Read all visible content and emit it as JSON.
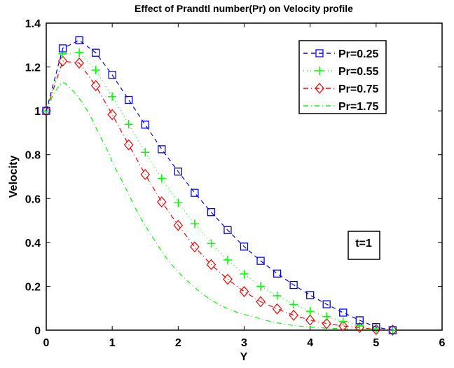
{
  "chart_data": {
    "type": "line",
    "title": "Effect of Prandtl number(Pr) on Velocity profile",
    "xlabel": "Y",
    "ylabel": "Velocity",
    "xlim": [
      0,
      6
    ],
    "ylim": [
      0,
      1.4
    ],
    "xticks": [
      0,
      1,
      2,
      3,
      4,
      5,
      6
    ],
    "xtick_labels": [
      "0",
      "1",
      "2",
      "3",
      "4",
      "5",
      "6"
    ],
    "yticks": [
      0,
      0.2,
      0.4,
      0.6,
      0.8,
      1.0,
      1.2,
      1.4
    ],
    "ytick_labels": [
      "0",
      "0.2",
      "0.4",
      "0.6",
      "0.8",
      "1",
      "1.2",
      "1.4"
    ],
    "grid": false,
    "legend_position": "top-right",
    "annotation": "t=1",
    "annotation_position": "right-middle",
    "series": [
      {
        "name": "Pr=0.25",
        "color": "#0000ff",
        "line_style": "dashed",
        "marker": "square",
        "x": [
          0,
          0.25,
          0.5,
          0.75,
          1.0,
          1.25,
          1.5,
          1.75,
          2.0,
          2.25,
          2.5,
          2.75,
          3.0,
          3.25,
          3.5,
          3.75,
          4.0,
          4.25,
          4.5,
          4.75,
          5.0,
          5.25
        ],
        "y": [
          1.0,
          1.285,
          1.322,
          1.265,
          1.164,
          1.05,
          0.937,
          0.825,
          0.723,
          0.626,
          0.538,
          0.456,
          0.381,
          0.316,
          0.258,
          0.206,
          0.16,
          0.118,
          0.08,
          0.045,
          0.014,
          0.0
        ]
      },
      {
        "name": "Pr=0.55",
        "color": "#00ff00",
        "line_style": "dotted",
        "marker": "plus",
        "x": [
          0,
          0.25,
          0.5,
          0.75,
          1.0,
          1.25,
          1.5,
          1.75,
          2.0,
          2.25,
          2.5,
          2.75,
          3.0,
          3.25,
          3.5,
          3.75,
          4.0,
          4.25,
          4.5,
          4.75,
          5.0,
          5.25
        ],
        "y": [
          1.0,
          1.26,
          1.266,
          1.186,
          1.065,
          0.939,
          0.811,
          0.692,
          0.581,
          0.485,
          0.395,
          0.32,
          0.256,
          0.2,
          0.157,
          0.117,
          0.086,
          0.062,
          0.04,
          0.02,
          0.006,
          0.0
        ]
      },
      {
        "name": "Pr=0.75",
        "color": "#ff0000",
        "line_style": "dashdot",
        "marker": "diamond",
        "x": [
          0,
          0.25,
          0.5,
          0.75,
          1.0,
          1.25,
          1.5,
          1.75,
          2.0,
          2.25,
          2.5,
          2.75,
          3.0,
          3.25,
          3.5,
          3.75,
          4.0,
          4.25,
          4.5,
          4.75,
          5.0,
          5.25
        ],
        "y": [
          1.0,
          1.227,
          1.218,
          1.115,
          0.983,
          0.845,
          0.71,
          0.585,
          0.478,
          0.38,
          0.299,
          0.232,
          0.176,
          0.13,
          0.097,
          0.068,
          0.046,
          0.03,
          0.019,
          0.012,
          0.003,
          0.0
        ]
      },
      {
        "name": "Pr=1.75",
        "color": "#00ff00",
        "line_style": "dashdot",
        "marker": "none",
        "x": [
          0,
          0.1,
          0.2,
          0.27,
          0.41,
          0.54,
          0.68,
          0.79,
          0.93,
          1.02,
          1.16,
          1.37,
          1.5,
          1.67,
          1.81,
          1.99,
          2.17,
          2.38,
          2.6,
          2.88,
          3.13,
          3.38,
          3.66,
          4.01,
          4.5,
          5.0,
          5.25
        ],
        "y": [
          1.0,
          1.07,
          1.115,
          1.128,
          1.09,
          1.04,
          0.97,
          0.9,
          0.818,
          0.754,
          0.674,
          0.546,
          0.477,
          0.397,
          0.333,
          0.269,
          0.216,
          0.163,
          0.12,
          0.083,
          0.062,
          0.041,
          0.025,
          0.014,
          0.006,
          0.002,
          0.0
        ]
      }
    ]
  }
}
